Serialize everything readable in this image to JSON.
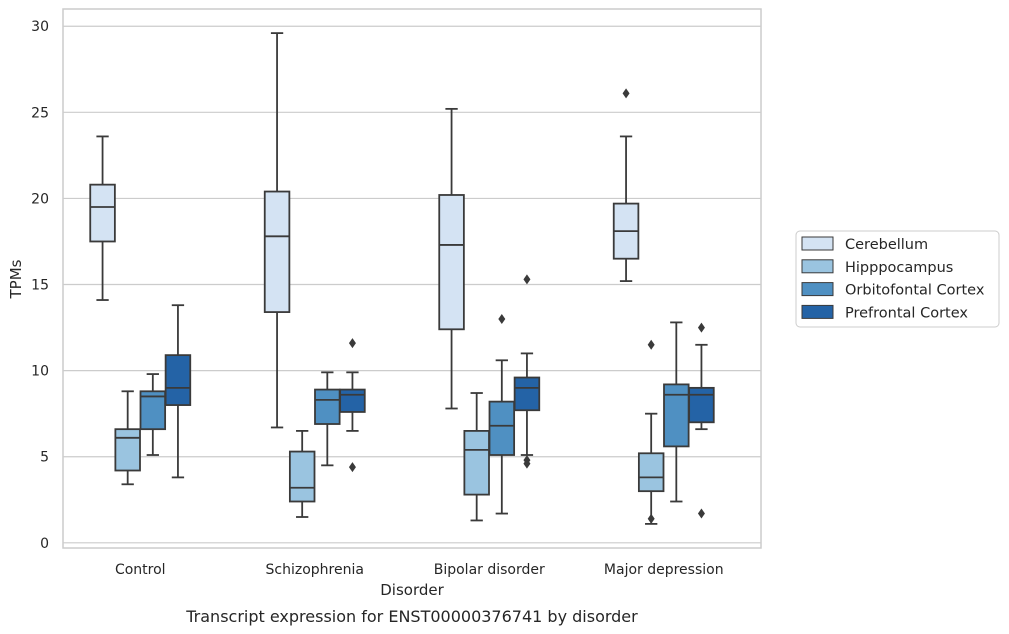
{
  "chart_data": {
    "type": "box",
    "title": "Transcript expression for ENST00000376741 by disorder",
    "xlabel": "Disorder",
    "ylabel": "TPMs",
    "ylim": [
      -0.3,
      31
    ],
    "yticks": [
      0,
      5,
      10,
      15,
      20,
      25,
      30
    ],
    "categories": [
      "Control",
      "Schizophrenia",
      "Bipolar disorder",
      "Major depression"
    ],
    "grid": "horizontal",
    "legend_position": "right",
    "series": [
      {
        "name": "Cerebellum",
        "color": "#d4e3f3",
        "boxes": [
          {
            "whislo": 14.1,
            "q1": 17.5,
            "med": 19.5,
            "q3": 20.8,
            "whishi": 23.6,
            "fliers": []
          },
          {
            "whislo": 6.7,
            "q1": 13.4,
            "med": 17.8,
            "q3": 20.4,
            "whishi": 29.6,
            "fliers": []
          },
          {
            "whislo": 7.8,
            "q1": 12.4,
            "med": 17.3,
            "q3": 20.2,
            "whishi": 25.2,
            "fliers": []
          },
          {
            "whislo": 15.2,
            "q1": 16.5,
            "med": 18.1,
            "q3": 19.7,
            "whishi": 23.6,
            "fliers": [
              26.1
            ]
          }
        ]
      },
      {
        "name": "Hipppocampus",
        "color": "#9ac4e0",
        "boxes": [
          {
            "whislo": 3.4,
            "q1": 4.2,
            "med": 6.1,
            "q3": 6.6,
            "whishi": 8.8,
            "fliers": []
          },
          {
            "whislo": 1.5,
            "q1": 2.4,
            "med": 3.2,
            "q3": 5.3,
            "whishi": 6.5,
            "fliers": []
          },
          {
            "whislo": 1.3,
            "q1": 2.8,
            "med": 5.4,
            "q3": 6.5,
            "whishi": 8.7,
            "fliers": []
          },
          {
            "whislo": 1.1,
            "q1": 3.0,
            "med": 3.8,
            "q3": 5.2,
            "whishi": 7.5,
            "fliers": [
              11.5,
              1.4
            ]
          }
        ]
      },
      {
        "name": "Orbitofontal Cortex",
        "color": "#4f90c2",
        "boxes": [
          {
            "whislo": 5.1,
            "q1": 6.6,
            "med": 8.5,
            "q3": 8.8,
            "whishi": 9.8,
            "fliers": []
          },
          {
            "whislo": 4.5,
            "q1": 6.9,
            "med": 8.3,
            "q3": 8.9,
            "whishi": 9.9,
            "fliers": []
          },
          {
            "whislo": 1.7,
            "q1": 5.1,
            "med": 6.8,
            "q3": 8.2,
            "whishi": 10.6,
            "fliers": [
              13.0
            ]
          },
          {
            "whislo": 2.4,
            "q1": 5.6,
            "med": 8.6,
            "q3": 9.2,
            "whishi": 12.8,
            "fliers": []
          }
        ]
      },
      {
        "name": "Prefrontal Cortex",
        "color": "#2463a6",
        "boxes": [
          {
            "whislo": 3.8,
            "q1": 8.0,
            "med": 9.0,
            "q3": 10.9,
            "whishi": 13.8,
            "fliers": []
          },
          {
            "whislo": 6.5,
            "q1": 7.6,
            "med": 8.6,
            "q3": 8.9,
            "whishi": 9.9,
            "fliers": [
              11.6,
              4.4
            ]
          },
          {
            "whislo": 5.1,
            "q1": 7.7,
            "med": 9.0,
            "q3": 9.6,
            "whishi": 11.0,
            "fliers": [
              15.3,
              4.8,
              4.6
            ]
          },
          {
            "whislo": 6.6,
            "q1": 7.0,
            "med": 8.6,
            "q3": 9.0,
            "whishi": 11.5,
            "fliers": [
              12.5,
              1.7
            ]
          }
        ]
      }
    ]
  }
}
